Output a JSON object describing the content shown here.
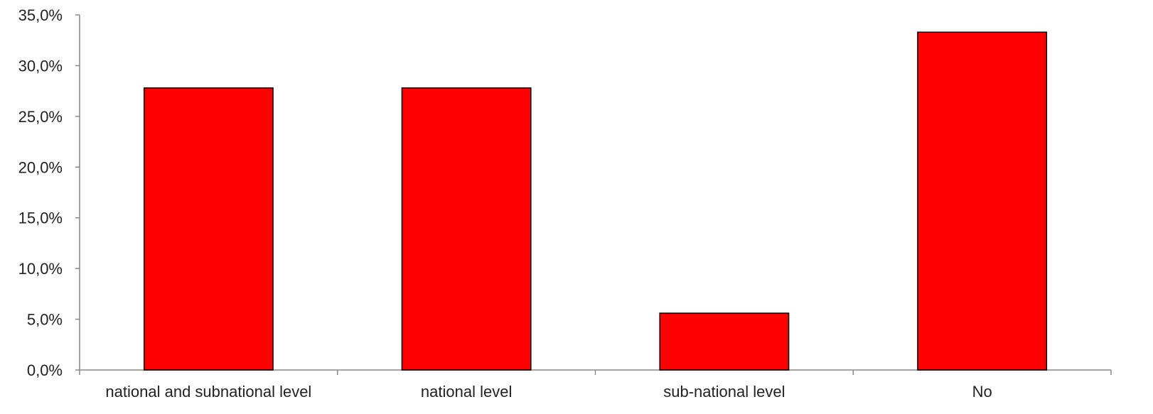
{
  "chart_data": {
    "type": "bar",
    "categories": [
      "national and subnational level",
      "national level",
      "sub-national level",
      "No"
    ],
    "values": [
      27.8,
      27.8,
      5.6,
      33.3
    ],
    "ylim": [
      0,
      35
    ],
    "yticks": [
      0,
      5,
      10,
      15,
      20,
      25,
      30,
      35
    ],
    "ytick_labels": [
      "0,0%",
      "5,0%",
      "10,0%",
      "15,0%",
      "20,0%",
      "25,0%",
      "30,0%",
      "35,0%"
    ],
    "bar_color": "#ff0000",
    "bar_border_color": "#000000",
    "grid": false,
    "legend": "none"
  }
}
